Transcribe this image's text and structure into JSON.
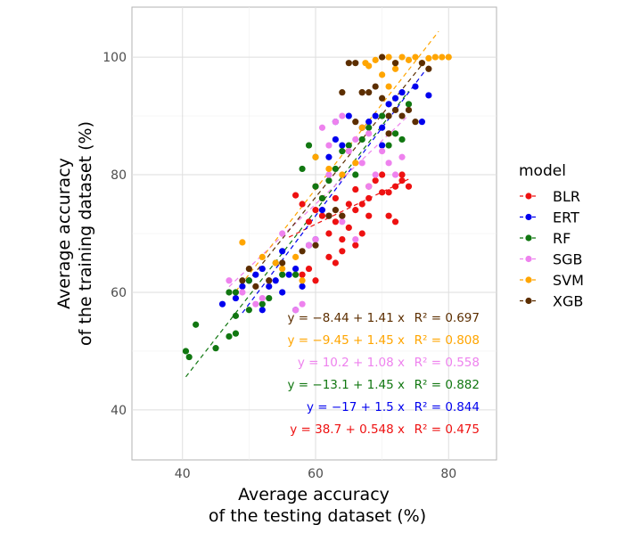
{
  "chart_data": {
    "type": "scatter",
    "xlabel": [
      "Average accuracy",
      "of the testing dataset (%)"
    ],
    "ylabel": [
      "Average accuracy",
      "of the training dataset (%)"
    ],
    "xlim": [
      32.4,
      87.2
    ],
    "ylim": [
      31.5,
      108.5
    ],
    "xticks": [
      "40",
      "60",
      "80"
    ],
    "yticks": [
      "40",
      "60",
      "80",
      "100"
    ],
    "grid": true,
    "legend": {
      "title": "model",
      "placement": "right"
    },
    "series": [
      {
        "name": "BLR",
        "color": "#ee1111",
        "fit": {
          "intercept": 38.7,
          "slope": 0.548,
          "xrange": [
            56,
            74
          ],
          "label": "y = 38.7 + 0.548 x",
          "r2": "R² = 0.475"
        },
        "points": [
          [
            57,
            76.5
          ],
          [
            58,
            75
          ],
          [
            59,
            72
          ],
          [
            60,
            74
          ],
          [
            61,
            73
          ],
          [
            62,
            70
          ],
          [
            63,
            72
          ],
          [
            64,
            73
          ],
          [
            64,
            69
          ],
          [
            65,
            71
          ],
          [
            65,
            75
          ],
          [
            66,
            74
          ],
          [
            66,
            77.5
          ],
          [
            67,
            75
          ],
          [
            68,
            73
          ],
          [
            68,
            78
          ],
          [
            69,
            79
          ],
          [
            70,
            77
          ],
          [
            71,
            77
          ],
          [
            72,
            78
          ],
          [
            72,
            72
          ],
          [
            73,
            80
          ],
          [
            73,
            79
          ],
          [
            62,
            66
          ],
          [
            64,
            67
          ],
          [
            66,
            68
          ],
          [
            67,
            70
          ],
          [
            70,
            80
          ],
          [
            71,
            73
          ],
          [
            61,
            76
          ],
          [
            59,
            64
          ],
          [
            58,
            63
          ],
          [
            60,
            62
          ],
          [
            63,
            65
          ],
          [
            60,
            78
          ],
          [
            62,
            73
          ],
          [
            63,
            76
          ],
          [
            68,
            76
          ],
          [
            74,
            78
          ]
        ]
      },
      {
        "name": "ERT",
        "color": "#0000ee",
        "fit": {
          "intercept": -17,
          "slope": 1.5,
          "xrange": [
            49,
            77
          ],
          "label": "y = −17 + 1.5 x",
          "r2": "R² = 0.844"
        },
        "points": [
          [
            46,
            58
          ],
          [
            48,
            59
          ],
          [
            49,
            61
          ],
          [
            50,
            62
          ],
          [
            51,
            63
          ],
          [
            52,
            64
          ],
          [
            53,
            61
          ],
          [
            54,
            62
          ],
          [
            55,
            60
          ],
          [
            56,
            63
          ],
          [
            57,
            64
          ],
          [
            58,
            61
          ],
          [
            59,
            68
          ],
          [
            60,
            69
          ],
          [
            62,
            83
          ],
          [
            63,
            86
          ],
          [
            63,
            89
          ],
          [
            65,
            90
          ],
          [
            67,
            88
          ],
          [
            68,
            89
          ],
          [
            69,
            90
          ],
          [
            70,
            88
          ],
          [
            71,
            92
          ],
          [
            72,
            93
          ],
          [
            73,
            94
          ],
          [
            75,
            95
          ],
          [
            77,
            93.5
          ],
          [
            76,
            89
          ],
          [
            70,
            85
          ],
          [
            64,
            85
          ],
          [
            61,
            74
          ],
          [
            57,
            57
          ],
          [
            52,
            57
          ],
          [
            55,
            67
          ]
        ]
      },
      {
        "name": "RF",
        "color": "#117711",
        "fit": {
          "intercept": -13.1,
          "slope": 1.45,
          "xrange": [
            40.5,
            74
          ],
          "label": "y = −13.1 + 1.45 x",
          "r2": "R² = 0.882"
        },
        "points": [
          [
            40.5,
            50
          ],
          [
            41,
            49
          ],
          [
            42,
            54.5
          ],
          [
            45,
            50.5
          ],
          [
            47,
            52.5
          ],
          [
            48,
            53
          ],
          [
            47,
            60
          ],
          [
            48,
            56
          ],
          [
            50,
            57
          ],
          [
            52,
            58
          ],
          [
            53,
            59
          ],
          [
            55,
            63
          ],
          [
            57,
            63
          ],
          [
            58,
            81
          ],
          [
            59,
            85
          ],
          [
            60,
            83
          ],
          [
            61,
            76
          ],
          [
            62,
            79
          ],
          [
            63,
            81
          ],
          [
            64,
            84
          ],
          [
            65,
            85
          ],
          [
            66,
            80
          ],
          [
            67,
            86
          ],
          [
            68,
            88
          ],
          [
            70,
            90
          ],
          [
            71,
            85
          ],
          [
            72,
            87
          ],
          [
            73,
            86
          ],
          [
            74,
            92
          ],
          [
            48,
            60
          ],
          [
            50,
            62
          ],
          [
            54,
            65
          ],
          [
            60,
            78
          ]
        ]
      },
      {
        "name": "SGB",
        "color": "#ee82ee",
        "fit": {
          "intercept": 10.2,
          "slope": 1.08,
          "xrange": [
            47,
            74
          ],
          "label": "y = 10.2 + 1.08 x",
          "r2": "R² = 0.558"
        },
        "points": [
          [
            47,
            62
          ],
          [
            49,
            60
          ],
          [
            51,
            58
          ],
          [
            52,
            59
          ],
          [
            53,
            62
          ],
          [
            55,
            70
          ],
          [
            57,
            57
          ],
          [
            58,
            58
          ],
          [
            59,
            68
          ],
          [
            60,
            69
          ],
          [
            61,
            88
          ],
          [
            62,
            85
          ],
          [
            63,
            89
          ],
          [
            64,
            90
          ],
          [
            65,
            84
          ],
          [
            66,
            86
          ],
          [
            67,
            82
          ],
          [
            68,
            78
          ],
          [
            69,
            80
          ],
          [
            70,
            84
          ],
          [
            71,
            82
          ],
          [
            72,
            80
          ],
          [
            73,
            83
          ],
          [
            64,
            72
          ],
          [
            66,
            69
          ],
          [
            62,
            80
          ],
          [
            68,
            87
          ]
        ]
      },
      {
        "name": "SVM",
        "color": "#ffa500",
        "fit": {
          "intercept": -9.45,
          "slope": 1.45,
          "xrange": [
            48,
            78.5
          ],
          "label": "y = −9.45 + 1.45 x",
          "r2": "R² = 0.808"
        },
        "points": [
          [
            49,
            68.5
          ],
          [
            52,
            66
          ],
          [
            54,
            65
          ],
          [
            58,
            62
          ],
          [
            60,
            83
          ],
          [
            62,
            81
          ],
          [
            64,
            80
          ],
          [
            66,
            82
          ],
          [
            67,
            88
          ],
          [
            67.5,
            99
          ],
          [
            68,
            98.5
          ],
          [
            69,
            99.5
          ],
          [
            70,
            100
          ],
          [
            71,
            100
          ],
          [
            72,
            99
          ],
          [
            73,
            100
          ],
          [
            74,
            99.5
          ],
          [
            75,
            100
          ],
          [
            76,
            99
          ],
          [
            77,
            99.8
          ],
          [
            78,
            100
          ],
          [
            79,
            100
          ],
          [
            80,
            100
          ],
          [
            70,
            97
          ],
          [
            71,
            95
          ],
          [
            72,
            98
          ],
          [
            57,
            66
          ],
          [
            55,
            64
          ]
        ]
      },
      {
        "name": "XGB",
        "color": "#5c2e00",
        "fit": {
          "intercept": -8.44,
          "slope": 1.41,
          "xrange": [
            49,
            76
          ],
          "label": "y = −8.44 + 1.41 x",
          "r2": "R² = 0.697"
        },
        "points": [
          [
            49,
            62
          ],
          [
            50,
            64
          ],
          [
            51,
            61
          ],
          [
            53,
            62
          ],
          [
            55,
            65
          ],
          [
            58,
            67
          ],
          [
            60,
            68
          ],
          [
            62,
            73
          ],
          [
            63,
            74
          ],
          [
            64,
            94
          ],
          [
            65,
            99
          ],
          [
            66,
            99
          ],
          [
            67,
            94
          ],
          [
            68,
            94
          ],
          [
            69,
            95
          ],
          [
            70,
            93
          ],
          [
            71,
            90
          ],
          [
            72,
            91
          ],
          [
            73,
            90
          ],
          [
            74,
            91
          ],
          [
            75,
            89
          ],
          [
            76,
            99
          ],
          [
            77,
            98
          ],
          [
            70,
            100
          ],
          [
            72,
            99
          ],
          [
            71,
            87
          ],
          [
            66,
            89
          ],
          [
            67,
            94
          ],
          [
            64,
            73
          ]
        ]
      }
    ],
    "annotation_order": [
      "XGB",
      "SVM",
      "SGB",
      "RF",
      "ERT",
      "BLR"
    ]
  }
}
